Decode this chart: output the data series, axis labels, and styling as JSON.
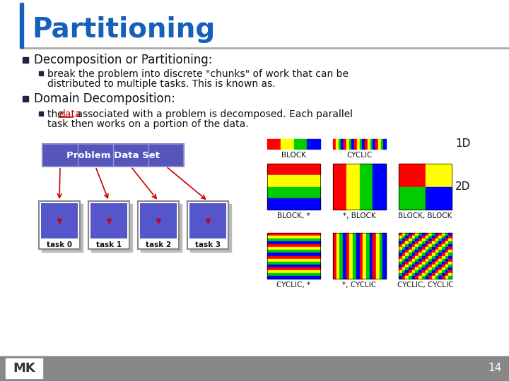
{
  "title": "Partitioning",
  "title_color": "#1560bd",
  "bg_color": "#ffffff",
  "bullet1": "Decomposition or Partitioning:",
  "bullet1_sub1": "break the problem into discrete \"chunks\" of work that can be",
  "bullet1_sub2": "distributed to multiple tasks. This is known as.",
  "bullet2": "Domain Decomposition:",
  "bullet2_sub1a": "the ",
  "bullet2_sub1b": "data",
  "bullet2_sub1c": " associated with a problem is decomposed. Each parallel",
  "bullet2_sub2": "task then works on a portion of the data.",
  "footer_page": "14",
  "footer_bg": "#888888",
  "left_diagram_label": "Problem Data Set",
  "task_labels": [
    "task 0",
    "task 1",
    "task 2",
    "task 3"
  ],
  "label_1d": "1D",
  "label_2d": "2D",
  "grid_labels_row1": [
    "BLOCK",
    "CYCLIC"
  ],
  "grid_labels_row2": [
    "BLOCK, *",
    "*, BLOCK",
    "BLOCK, BLOCK"
  ],
  "grid_labels_row3": [
    "CYCLIC, *",
    "*, CYCLIC",
    "CYCLIC, CYCLIC"
  ]
}
